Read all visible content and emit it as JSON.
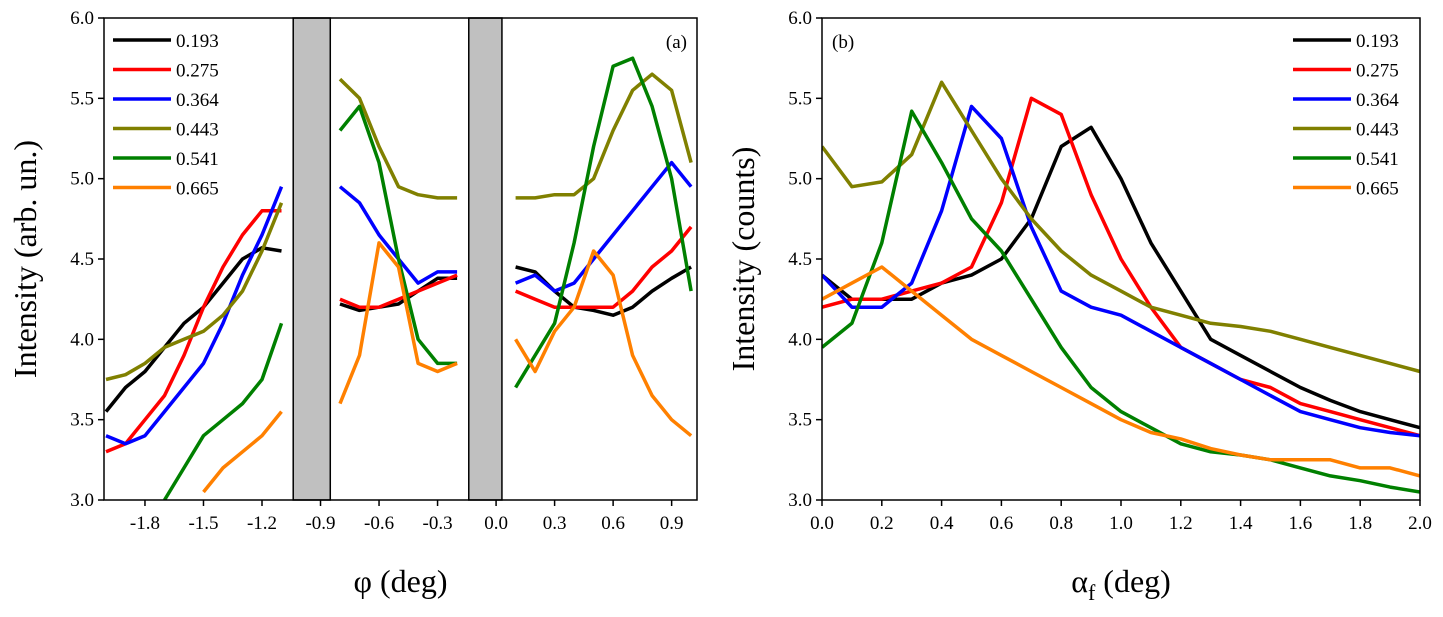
{
  "chart_data": [
    {
      "type": "line",
      "panel_label": "(a)",
      "ylabel": "Intensity (arb. un.)",
      "xlabel": "φ (deg)",
      "xlim": [
        -2.01,
        1.03
      ],
      "ylim": [
        3,
        6
      ],
      "xticks": [
        -1.8,
        -1.5,
        -1.2,
        -0.9,
        -0.6,
        -0.3,
        {
          "value": 0,
          "label": "0.0"
        },
        0.3,
        0.6,
        0.9
      ],
      "yticks": [
        {
          "value": 3,
          "label": "3.0"
        },
        3.5,
        {
          "value": 4,
          "label": "4.0"
        },
        4.5,
        {
          "value": 5,
          "label": "5.0"
        },
        5.5,
        {
          "value": 6,
          "label": "6.0"
        }
      ],
      "legend": "upper left",
      "masked_x": [
        [
          -1.04,
          -0.85
        ],
        [
          -0.14,
          0.03
        ]
      ],
      "x": [
        -2.0,
        -1.9,
        -1.8,
        -1.7,
        -1.6,
        -1.5,
        -1.4,
        -1.3,
        -1.2,
        -1.1,
        -1.0,
        -0.9,
        -0.8,
        -0.7,
        -0.6,
        -0.5,
        -0.4,
        -0.3,
        -0.2,
        -0.1,
        0.0,
        0.1,
        0.2,
        0.3,
        0.4,
        0.5,
        0.6,
        0.7,
        0.8,
        0.9,
        1.0
      ],
      "series": [
        {
          "name": "0.193",
          "color": "#000000",
          "values": [
            3.55,
            3.7,
            3.8,
            3.95,
            4.1,
            4.2,
            4.35,
            4.5,
            4.57,
            4.55,
            null,
            null,
            4.22,
            4.18,
            4.2,
            4.22,
            4.3,
            4.38,
            4.38,
            null,
            null,
            4.45,
            4.42,
            4.3,
            4.2,
            4.18,
            4.15,
            4.2,
            4.3,
            4.38,
            4.45
          ]
        },
        {
          "name": "0.275",
          "color": "#ff0000",
          "values": [
            3.3,
            3.35,
            3.5,
            3.65,
            3.9,
            4.2,
            4.45,
            4.65,
            4.8,
            4.8,
            null,
            null,
            4.25,
            4.2,
            4.2,
            4.25,
            4.3,
            4.35,
            4.4,
            null,
            null,
            4.3,
            4.25,
            4.2,
            4.2,
            4.2,
            4.2,
            4.3,
            4.45,
            4.55,
            4.7
          ]
        },
        {
          "name": "0.364",
          "color": "#0000ff",
          "values": [
            3.4,
            3.35,
            3.4,
            3.55,
            3.7,
            3.85,
            4.1,
            4.4,
            4.65,
            4.95,
            null,
            null,
            4.95,
            4.85,
            4.65,
            4.5,
            4.35,
            4.42,
            4.42,
            null,
            null,
            4.35,
            4.4,
            4.3,
            4.35,
            4.5,
            4.65,
            4.8,
            4.95,
            5.1,
            4.95
          ]
        },
        {
          "name": "0.443",
          "color": "#808000",
          "values": [
            3.75,
            3.78,
            3.85,
            3.95,
            4.0,
            4.05,
            4.15,
            4.3,
            4.55,
            4.85,
            null,
            null,
            5.62,
            5.5,
            5.2,
            4.95,
            4.9,
            4.88,
            4.88,
            null,
            null,
            4.88,
            4.88,
            4.9,
            4.9,
            5.0,
            5.3,
            5.55,
            5.65,
            5.55,
            5.1
          ]
        },
        {
          "name": "0.541",
          "color": "#008000",
          "values": [
            null,
            null,
            null,
            3.0,
            3.2,
            3.4,
            3.5,
            3.6,
            3.75,
            4.1,
            null,
            null,
            5.3,
            5.45,
            5.1,
            4.5,
            4.0,
            3.85,
            3.85,
            null,
            null,
            3.7,
            3.9,
            4.1,
            4.6,
            5.2,
            5.7,
            5.75,
            5.45,
            5.0,
            4.3
          ]
        },
        {
          "name": "0.665",
          "color": "#ff8000",
          "values": [
            null,
            null,
            null,
            null,
            null,
            3.05,
            3.2,
            3.3,
            3.4,
            3.55,
            null,
            null,
            3.6,
            3.9,
            4.6,
            4.45,
            3.85,
            3.8,
            3.85,
            null,
            null,
            4.0,
            3.8,
            4.05,
            4.2,
            4.55,
            4.4,
            3.9,
            3.65,
            3.5,
            3.4
          ]
        }
      ]
    },
    {
      "type": "line",
      "panel_label": "(b)",
      "ylabel": "Intensity (counts)",
      "xlabel": "α",
      "xlabel_sub": "f",
      "xlabel_unit": " (deg)",
      "xlim": [
        0,
        2
      ],
      "ylim": [
        3,
        6
      ],
      "xticks": [
        {
          "value": 0,
          "label": "0.0"
        },
        0.2,
        0.4,
        0.6,
        0.8,
        {
          "value": 1,
          "label": "1.0"
        },
        1.2,
        1.4,
        1.6,
        1.8,
        {
          "value": 2,
          "label": "2.0"
        }
      ],
      "yticks": [
        {
          "value": 3,
          "label": "3.0"
        },
        3.5,
        {
          "value": 4,
          "label": "4.0"
        },
        4.5,
        {
          "value": 5,
          "label": "5.0"
        },
        5.5,
        {
          "value": 6,
          "label": "6.0"
        }
      ],
      "legend": "upper right",
      "x": [
        0.0,
        0.1,
        0.2,
        0.3,
        0.4,
        0.5,
        0.6,
        0.7,
        0.8,
        0.9,
        1.0,
        1.1,
        1.2,
        1.3,
        1.4,
        1.5,
        1.6,
        1.7,
        1.8,
        1.9,
        2.0
      ],
      "series": [
        {
          "name": "0.193",
          "color": "#000000",
          "values": [
            4.4,
            4.25,
            4.25,
            4.25,
            4.35,
            4.4,
            4.5,
            4.75,
            5.2,
            5.32,
            5.0,
            4.6,
            4.3,
            4.0,
            3.9,
            3.8,
            3.7,
            3.62,
            3.55,
            3.5,
            3.45
          ]
        },
        {
          "name": "0.275",
          "color": "#ff0000",
          "values": [
            4.2,
            4.25,
            4.25,
            4.3,
            4.35,
            4.45,
            4.85,
            5.5,
            5.4,
            4.9,
            4.5,
            4.2,
            3.95,
            3.85,
            3.75,
            3.7,
            3.6,
            3.55,
            3.5,
            3.45,
            3.4
          ]
        },
        {
          "name": "0.364",
          "color": "#0000ff",
          "values": [
            4.4,
            4.2,
            4.2,
            4.35,
            4.8,
            5.45,
            5.25,
            4.7,
            4.3,
            4.2,
            4.15,
            4.05,
            3.95,
            3.85,
            3.75,
            3.65,
            3.55,
            3.5,
            3.45,
            3.42,
            3.4
          ]
        },
        {
          "name": "0.443",
          "color": "#808000",
          "values": [
            5.2,
            4.95,
            4.98,
            5.15,
            5.6,
            5.3,
            5.0,
            4.75,
            4.55,
            4.4,
            4.3,
            4.2,
            4.15,
            4.1,
            4.08,
            4.05,
            4.0,
            3.95,
            3.9,
            3.85,
            3.8
          ]
        },
        {
          "name": "0.541",
          "color": "#008000",
          "values": [
            3.95,
            4.1,
            4.6,
            5.42,
            5.1,
            4.75,
            4.55,
            4.25,
            3.95,
            3.7,
            3.55,
            3.45,
            3.35,
            3.3,
            3.28,
            3.25,
            3.2,
            3.15,
            3.12,
            3.08,
            3.05
          ]
        },
        {
          "name": "0.665",
          "color": "#ff8000",
          "values": [
            4.25,
            4.35,
            4.45,
            4.3,
            4.15,
            4.0,
            3.9,
            3.8,
            3.7,
            3.6,
            3.5,
            3.42,
            3.38,
            3.32,
            3.28,
            3.25,
            3.25,
            3.25,
            3.2,
            3.2,
            3.15
          ]
        }
      ]
    }
  ]
}
